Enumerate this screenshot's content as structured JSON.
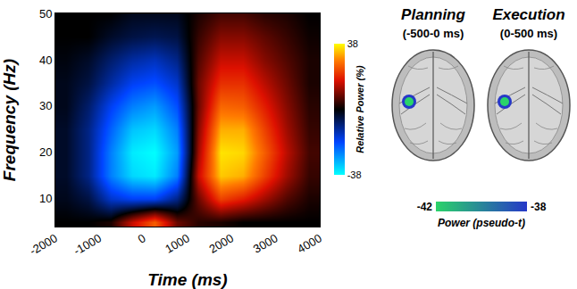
{
  "chart_data": {
    "type": "heatmap",
    "xlabel": "Time (ms)",
    "ylabel": "Frequency (Hz)",
    "x": [
      -1750,
      -1250,
      -750,
      -250,
      250,
      750,
      1250,
      1750,
      2250,
      2750,
      3250,
      3750
    ],
    "y": [
      5,
      10,
      15,
      20,
      25,
      30,
      35,
      40,
      45,
      50
    ],
    "z": [
      [
        0,
        0,
        2,
        15,
        25,
        8,
        3,
        2,
        0,
        0,
        0,
        0
      ],
      [
        -2,
        -5,
        -15,
        -18,
        -18,
        -10,
        8,
        22,
        18,
        12,
        6,
        2
      ],
      [
        -3,
        -10,
        -25,
        -34,
        -36,
        -25,
        15,
        34,
        32,
        22,
        12,
        4
      ],
      [
        -3,
        -10,
        -25,
        -36,
        -38,
        -28,
        12,
        36,
        35,
        25,
        14,
        5
      ],
      [
        -3,
        -10,
        -22,
        -32,
        -34,
        -25,
        10,
        32,
        32,
        22,
        12,
        4
      ],
      [
        -2,
        -8,
        -18,
        -25,
        -28,
        -20,
        8,
        26,
        25,
        18,
        10,
        3
      ],
      [
        -2,
        -5,
        -12,
        -18,
        -20,
        -15,
        8,
        20,
        20,
        14,
        8,
        2
      ],
      [
        -1,
        -3,
        -8,
        -12,
        -14,
        -10,
        6,
        15,
        15,
        10,
        6,
        2
      ],
      [
        0,
        0,
        -3,
        -5,
        -6,
        -5,
        4,
        10,
        10,
        7,
        4,
        1
      ],
      [
        0,
        0,
        0,
        -2,
        -2,
        -2,
        2,
        5,
        5,
        3,
        2,
        0
      ]
    ],
    "xlim": [
      -2000,
      4000
    ],
    "xticks": [
      -2000,
      -1000,
      0,
      1000,
      2000,
      3000,
      4000
    ],
    "ylim": [
      4,
      50
    ],
    "yticks": [
      10,
      20,
      30,
      40,
      50
    ],
    "colorbar": {
      "title": "Relative Power (%)",
      "range": [
        -38,
        38
      ],
      "ticks": [
        -38,
        38
      ]
    }
  },
  "brain_maps": {
    "panels": [
      {
        "title": "Planning",
        "window": "(-500-0 ms)"
      },
      {
        "title": "Execution",
        "window": "(0-500 ms)"
      }
    ],
    "colorbar": {
      "title": "Power (pseudo-t)",
      "range": [
        -42,
        -38
      ],
      "ticks": [
        -42,
        -38
      ]
    }
  }
}
